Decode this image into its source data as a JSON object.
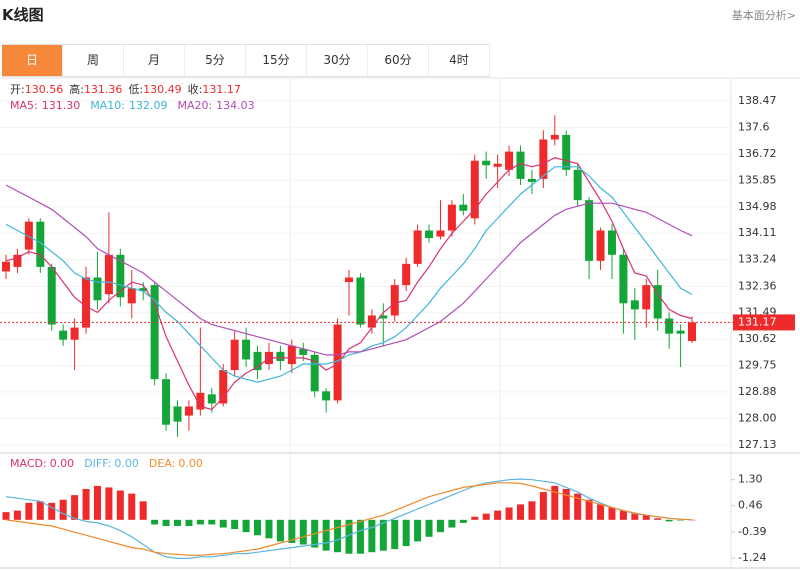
{
  "header": {
    "title": "K线图",
    "link": "基本面分析>"
  },
  "tabs": [
    {
      "label": "日",
      "active": true
    },
    {
      "label": "周",
      "active": false
    },
    {
      "label": "月",
      "active": false
    },
    {
      "label": "5分",
      "active": false
    },
    {
      "label": "15分",
      "active": false
    },
    {
      "label": "30分",
      "active": false
    },
    {
      "label": "60分",
      "active": false
    },
    {
      "label": "4时",
      "active": false
    }
  ],
  "chart_data": [
    {
      "type": "candlestick",
      "info": [
        {
          "label": "开:",
          "value": 130.56
        },
        {
          "label": "高:",
          "value": 131.36
        },
        {
          "label": "低:",
          "value": 130.49
        },
        {
          "label": "收:",
          "value": 131.17
        }
      ],
      "up_color": "#ee2a2a",
      "down_color": "#13a538",
      "open": [
        132.85,
        133.0,
        133.57,
        134.49,
        133.0,
        130.9,
        130.6,
        131.0,
        132.65,
        132.1,
        133.4,
        131.8,
        132.3,
        132.4,
        129.3,
        128.4,
        128.1,
        128.3,
        128.8,
        128.5,
        129.6,
        130.6,
        130.2,
        129.8,
        130.2,
        129.8,
        130.3,
        130.1,
        128.9,
        128.6,
        132.5,
        132.65,
        131.0,
        131.4,
        131.4,
        132.4,
        133.1,
        134.2,
        134.0,
        134.2,
        135.05,
        134.6,
        136.5,
        136.3,
        136.2,
        136.8,
        135.9,
        135.9,
        137.2,
        137.35,
        136.2,
        135.2,
        133.2,
        134.2,
        133.4,
        131.9,
        131.6,
        132.4,
        131.3,
        130.9,
        130.56
      ],
      "high": [
        133.4,
        133.6,
        134.6,
        134.6,
        133.1,
        131.1,
        131.3,
        133.0,
        133.5,
        134.8,
        133.6,
        132.9,
        132.5,
        132.5,
        129.5,
        128.6,
        128.6,
        131.0,
        129.0,
        129.8,
        130.9,
        131.0,
        130.4,
        130.5,
        130.4,
        130.6,
        130.5,
        130.2,
        129.0,
        131.3,
        132.9,
        132.8,
        131.6,
        131.8,
        132.6,
        133.3,
        134.4,
        134.4,
        135.2,
        135.2,
        135.4,
        136.7,
        136.8,
        136.7,
        137.0,
        137.0,
        136.2,
        137.5,
        138.0,
        137.5,
        136.4,
        135.3,
        134.3,
        134.4,
        133.6,
        132.3,
        132.6,
        132.9,
        131.5,
        131.1,
        131.36
      ],
      "low": [
        132.6,
        132.8,
        133.4,
        132.8,
        130.9,
        130.4,
        129.6,
        130.8,
        131.6,
        131.8,
        131.7,
        131.3,
        131.9,
        129.1,
        127.6,
        127.4,
        127.6,
        128.1,
        128.2,
        128.4,
        129.4,
        129.7,
        129.3,
        129.6,
        129.6,
        129.5,
        129.9,
        128.7,
        128.2,
        128.5,
        131.4,
        131.0,
        130.8,
        130.4,
        131.2,
        132.2,
        133.0,
        133.8,
        133.9,
        134.0,
        134.7,
        134.4,
        135.9,
        135.6,
        136.0,
        135.7,
        135.4,
        135.6,
        137.0,
        136.0,
        135.0,
        132.6,
        132.9,
        132.6,
        130.8,
        130.6,
        131.0,
        130.9,
        130.3,
        129.7,
        130.49
      ],
      "close": [
        133.17,
        133.4,
        134.49,
        133.0,
        131.1,
        130.6,
        131.0,
        132.65,
        131.9,
        133.4,
        132.0,
        132.3,
        132.2,
        129.3,
        127.8,
        127.9,
        128.4,
        128.85,
        128.5,
        129.6,
        130.6,
        129.95,
        129.6,
        130.2,
        129.9,
        130.4,
        130.1,
        128.9,
        128.6,
        131.1,
        132.65,
        131.1,
        131.4,
        131.3,
        132.4,
        133.1,
        134.2,
        133.95,
        134.2,
        135.05,
        134.85,
        136.5,
        136.35,
        136.4,
        136.8,
        135.9,
        135.8,
        137.2,
        137.35,
        136.2,
        135.2,
        133.2,
        134.2,
        133.4,
        131.8,
        131.6,
        132.4,
        131.3,
        130.8,
        130.8,
        131.17
      ],
      "ma": [
        {
          "name": "MA5:",
          "color": "#d9316f",
          "current": {
            "value": 131.3,
            "label": "131.30"
          },
          "values": [
            133.2,
            133.3,
            133.5,
            133.4,
            133.0,
            132.5,
            132.0,
            131.7,
            131.5,
            131.9,
            132.2,
            132.5,
            132.4,
            131.8,
            130.7,
            129.9,
            129.1,
            128.4,
            128.3,
            128.7,
            129.2,
            129.5,
            129.7,
            130.0,
            130.0,
            130.0,
            130.0,
            129.9,
            129.6,
            129.8,
            130.3,
            130.5,
            131.0,
            131.5,
            131.8,
            131.9,
            132.5,
            133.0,
            133.6,
            134.1,
            134.5,
            134.9,
            135.4,
            135.8,
            136.2,
            136.4,
            136.3,
            136.4,
            136.6,
            136.5,
            136.4,
            135.8,
            135.2,
            134.5,
            133.6,
            132.8,
            132.7,
            132.1,
            131.6,
            131.4,
            131.3
          ]
        },
        {
          "name": "MA10:",
          "color": "#3fb6d8",
          "current": 132.09,
          "values": [
            134.4,
            134.2,
            134.0,
            133.8,
            133.5,
            133.2,
            132.8,
            132.6,
            132.5,
            132.5,
            132.4,
            132.3,
            132.2,
            131.9,
            131.5,
            131.2,
            130.8,
            130.4,
            130.0,
            129.6,
            129.4,
            129.3,
            129.2,
            129.3,
            129.4,
            129.6,
            129.8,
            129.8,
            129.8,
            129.9,
            130.1,
            130.2,
            130.4,
            130.5,
            130.7,
            131.0,
            131.4,
            131.8,
            132.3,
            132.7,
            133.1,
            133.6,
            134.2,
            134.6,
            135.0,
            135.4,
            135.7,
            136.0,
            136.3,
            136.3,
            136.3,
            136.0,
            135.6,
            135.3,
            134.8,
            134.3,
            133.8,
            133.3,
            132.8,
            132.3,
            132.09
          ]
        },
        {
          "name": "MA20:",
          "color": "#b24cb8",
          "current": 134.03,
          "values": [
            135.7,
            135.5,
            135.3,
            135.1,
            134.9,
            134.6,
            134.3,
            134.0,
            133.6,
            133.4,
            133.2,
            133.0,
            132.8,
            132.5,
            132.2,
            131.9,
            131.6,
            131.3,
            131.1,
            131.0,
            130.9,
            130.8,
            130.7,
            130.6,
            130.5,
            130.4,
            130.3,
            130.2,
            130.1,
            130.1,
            130.2,
            130.2,
            130.3,
            130.4,
            130.5,
            130.6,
            130.8,
            131.0,
            131.2,
            131.5,
            131.8,
            132.2,
            132.6,
            133.0,
            133.4,
            133.8,
            134.1,
            134.4,
            134.7,
            134.9,
            135.0,
            135.1,
            135.1,
            135.1,
            135.0,
            134.9,
            134.8,
            134.6,
            134.4,
            134.2,
            134.03
          ]
        }
      ],
      "last_price": 131.17,
      "ylim": [
        126.9,
        139.16
      ],
      "yticks": [
        138.47,
        137.6,
        136.72,
        135.85,
        134.98,
        134.11,
        133.24,
        132.36,
        131.49,
        130.62,
        129.75,
        128.88,
        {
          "value": 128,
          "label": "128.00"
        },
        127.13
      ],
      "grid": true
    },
    {
      "type": "macd",
      "up_color": "#ee2a2a",
      "down_color": "#13a538",
      "series": [
        {
          "name": "MACD:",
          "kind": "bar",
          "color": "#d9316f",
          "current": {
            "value": 0,
            "label": "0.00"
          },
          "values": [
            0.25,
            0.3,
            0.55,
            0.6,
            0.55,
            0.65,
            0.8,
            1.0,
            1.1,
            1.05,
            0.95,
            0.85,
            0.6,
            -0.15,
            -0.2,
            -0.2,
            -0.2,
            -0.15,
            -0.15,
            -0.25,
            -0.3,
            -0.4,
            -0.5,
            -0.6,
            -0.7,
            -0.75,
            -0.8,
            -0.9,
            -1.0,
            -1.05,
            -1.1,
            -1.1,
            -1.05,
            -1.0,
            -0.95,
            -0.85,
            -0.7,
            -0.55,
            -0.4,
            -0.25,
            -0.1,
            0.1,
            0.2,
            0.3,
            0.4,
            0.5,
            0.6,
            0.9,
            1.1,
            1.0,
            0.85,
            0.65,
            0.5,
            0.4,
            0.3,
            0.2,
            0.15,
            0.05,
            -0.05,
            -0.02,
            0
          ]
        },
        {
          "name": "DIFF:",
          "kind": "line",
          "color": "#5ab4e0",
          "current": {
            "value": 0,
            "label": "0.00"
          },
          "values": [
            0.75,
            0.7,
            0.65,
            0.6,
            0.4,
            0.2,
            0.05,
            -0.05,
            -0.1,
            -0.2,
            -0.35,
            -0.55,
            -0.8,
            -1.05,
            -1.2,
            -1.25,
            -1.25,
            -1.2,
            -1.2,
            -1.15,
            -1.1,
            -1.1,
            -1.05,
            -1.0,
            -0.95,
            -0.9,
            -0.85,
            -0.8,
            -0.75,
            -0.65,
            -0.5,
            -0.35,
            -0.25,
            -0.1,
            0.05,
            0.2,
            0.35,
            0.5,
            0.65,
            0.8,
            0.95,
            1.1,
            1.2,
            1.25,
            1.3,
            1.32,
            1.3,
            1.25,
            1.2,
            1.05,
            0.9,
            0.7,
            0.55,
            0.4,
            0.3,
            0.2,
            0.15,
            0.1,
            0.05,
            0.02,
            0
          ]
        },
        {
          "name": "DEA:",
          "kind": "line",
          "color": "#f08a2a",
          "current": {
            "value": 0,
            "label": "0.00"
          },
          "values": [
            0,
            -0.05,
            -0.1,
            -0.15,
            -0.2,
            -0.3,
            -0.4,
            -0.5,
            -0.6,
            -0.7,
            -0.8,
            -0.9,
            -0.95,
            -1.05,
            -1.1,
            -1.12,
            -1.15,
            -1.15,
            -1.12,
            -1.1,
            -1.05,
            -1.0,
            -0.95,
            -0.85,
            -0.75,
            -0.65,
            -0.55,
            -0.45,
            -0.35,
            -0.25,
            -0.15,
            -0.05,
            0.05,
            0.15,
            0.3,
            0.45,
            0.6,
            0.75,
            0.85,
            0.95,
            1.05,
            1.1,
            1.15,
            1.2,
            1.2,
            1.18,
            1.1,
            1.0,
            0.9,
            0.8,
            0.7,
            0.6,
            0.5,
            0.4,
            0.3,
            0.22,
            0.15,
            0.1,
            0.05,
            0.02,
            0
          ]
        }
      ],
      "ylim": [
        -1.53,
        2.07
      ],
      "yticks": [
        {
          "value": 1.3,
          "label": "1.30"
        },
        0.46,
        -0.39,
        -1.24
      ]
    }
  ]
}
